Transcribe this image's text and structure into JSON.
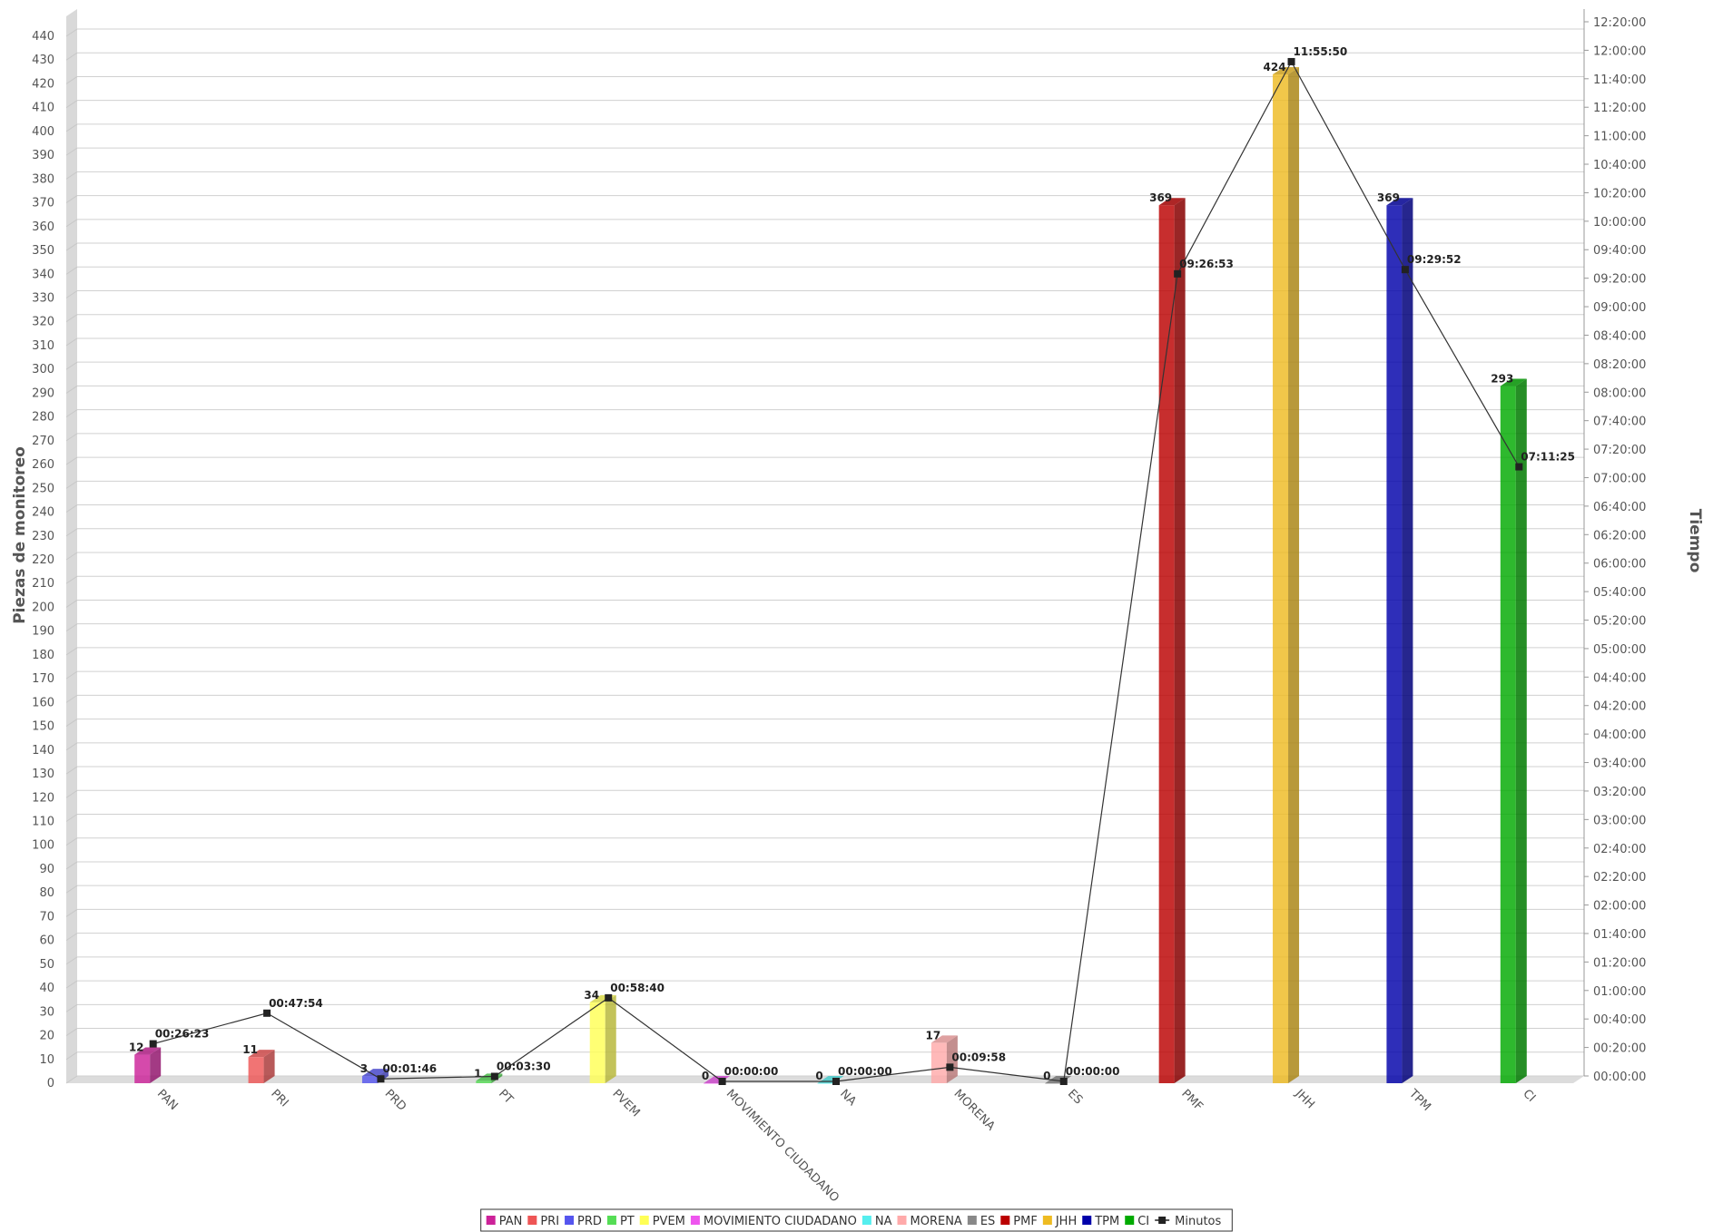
{
  "chart_data": {
    "type": "bar",
    "ylabel": "Piezas de monitoreo",
    "y2label": "Tiempo",
    "ylim": [
      0,
      440
    ],
    "y2lim": [
      "00:00:00",
      "12:20:00"
    ],
    "y_ticks": [
      "0",
      "10",
      "20",
      "30",
      "40",
      "50",
      "60",
      "70",
      "80",
      "90",
      "100",
      "110",
      "120",
      "130",
      "140",
      "150",
      "160",
      "170",
      "180",
      "190",
      "200",
      "210",
      "220",
      "230",
      "240",
      "250",
      "260",
      "270",
      "280",
      "290",
      "300",
      "310",
      "320",
      "330",
      "340",
      "350",
      "360",
      "370",
      "380",
      "390",
      "400",
      "410",
      "420",
      "430",
      "440"
    ],
    "y2_ticks": [
      "00:00:00",
      "00:20:00",
      "00:40:00",
      "01:00:00",
      "01:20:00",
      "01:40:00",
      "02:00:00",
      "02:20:00",
      "02:40:00",
      "03:00:00",
      "03:20:00",
      "03:40:00",
      "04:00:00",
      "04:20:00",
      "04:40:00",
      "05:00:00",
      "05:20:00",
      "05:40:00",
      "06:00:00",
      "06:20:00",
      "06:40:00",
      "07:00:00",
      "07:20:00",
      "07:40:00",
      "08:00:00",
      "08:20:00",
      "08:40:00",
      "09:00:00",
      "09:20:00",
      "09:40:00",
      "10:00:00",
      "10:20:00",
      "10:40:00",
      "11:00:00",
      "11:20:00",
      "11:40:00",
      "12:00:00",
      "12:20:00"
    ],
    "categories": [
      "PAN",
      "PRI",
      "PRD",
      "PT",
      "PVEM",
      "MOVIMIENTO CIUDADANO",
      "NA",
      "MORENA",
      "ES",
      "PMF",
      "JHH",
      "TPM",
      "CI"
    ],
    "series": [
      {
        "name": "PAN",
        "color": "#cc2299",
        "category": "PAN",
        "value": 12,
        "label": "12"
      },
      {
        "name": "PRI",
        "color": "#ee5555",
        "category": "PRI",
        "value": 11,
        "label": "11"
      },
      {
        "name": "PRD",
        "color": "#5555ee",
        "category": "PRD",
        "value": 3,
        "label": "3"
      },
      {
        "name": "PT",
        "color": "#55dd55",
        "category": "PT",
        "value": 1,
        "label": "1"
      },
      {
        "name": "PVEM",
        "color": "#ffff55",
        "category": "PVEM",
        "value": 34,
        "label": "34"
      },
      {
        "name": "MOVIMIENTO CIUDADANO",
        "color": "#ee55ee",
        "category": "MOVIMIENTO CIUDADANO",
        "value": 0,
        "label": "0"
      },
      {
        "name": "NA",
        "color": "#55eeee",
        "category": "NA",
        "value": 0,
        "label": "0"
      },
      {
        "name": "MORENA",
        "color": "#ffaaaa",
        "category": "MORENA",
        "value": 17,
        "label": "17"
      },
      {
        "name": "ES",
        "color": "#888888",
        "category": "ES",
        "value": 0,
        "label": "0"
      },
      {
        "name": "PMF",
        "color": "#bb0000",
        "category": "PMF",
        "value": 369,
        "label": "369"
      },
      {
        "name": "JHH",
        "color": "#eebb22",
        "category": "JHH",
        "value": 424,
        "label": "424"
      },
      {
        "name": "TPM",
        "color": "#0000aa",
        "category": "TPM",
        "value": 369,
        "label": "369"
      },
      {
        "name": "CI",
        "color": "#00aa00",
        "category": "CI",
        "value": 293,
        "label": "293"
      }
    ],
    "line": {
      "name": "Minutos",
      "color": "#222222",
      "values": [
        "00:26:23",
        "00:47:54",
        "00:01:46",
        "00:03:30",
        "00:58:40",
        "00:00:00",
        "00:00:00",
        "00:09:58",
        "00:00:00",
        "09:26:53",
        "11:55:50",
        "09:29:52",
        "07:11:25"
      ]
    },
    "grid": true,
    "legend_position": "bottom"
  }
}
